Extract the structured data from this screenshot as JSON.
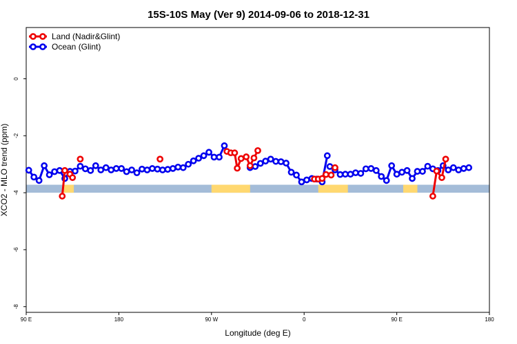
{
  "chart_data": {
    "type": "line",
    "title": "15S-10S May (Ver 9)   2014-09-06 to 2018-12-31",
    "xlabel": "Longitude (deg E)",
    "ylabel": "XCO2 - MLO trend (ppm)",
    "xlim": [
      90,
      450
    ],
    "ylim": [
      -8.2,
      1.8
    ],
    "x_ticks": [
      {
        "value": 90,
        "label": "90 E"
      },
      {
        "value": 162,
        "label": "180"
      },
      {
        "value": 234,
        "label": "90 W"
      },
      {
        "value": 306,
        "label": "0"
      },
      {
        "value": 378,
        "label": "90 E"
      },
      {
        "value": 450,
        "label": "180"
      }
    ],
    "y_ticks": [
      {
        "value": 0,
        "label": "0"
      },
      {
        "value": -2,
        "label": "-2"
      },
      {
        "value": -4,
        "label": "-4"
      },
      {
        "value": -6,
        "label": "-6"
      },
      {
        "value": -8,
        "label": "-8"
      }
    ],
    "legend": {
      "position": "top-left",
      "entries": [
        {
          "name": "Land (Nadir&Glint)",
          "color": "#ee0000"
        },
        {
          "name": "Ocean (Glint)",
          "color": "#0000ee"
        }
      ]
    },
    "land_mask_band": {
      "y_range": [
        -4.0,
        -3.72
      ],
      "ocean_color": "#a4bcd8",
      "land_color": "#ffd870",
      "land_segments": [
        [
          118,
          127
        ],
        [
          234,
          264
        ],
        [
          317,
          340
        ],
        [
          383,
          394
        ]
      ]
    },
    "series": [
      {
        "name": "Ocean (Glint)",
        "color": "#0000ee",
        "segments": [
          [
            [
              92,
              -3.21
            ],
            [
              96,
              -3.45
            ],
            [
              100,
              -3.57
            ],
            [
              104,
              -3.05
            ],
            [
              108,
              -3.37
            ],
            [
              112,
              -3.26
            ],
            [
              116,
              -3.22
            ],
            [
              120,
              -3.5
            ],
            [
              124,
              -3.25
            ],
            [
              128,
              -3.24
            ],
            [
              132,
              -3.07
            ],
            [
              136,
              -3.16
            ],
            [
              140,
              -3.22
            ],
            [
              144,
              -3.05
            ],
            [
              148,
              -3.2
            ],
            [
              152,
              -3.12
            ],
            [
              156,
              -3.2
            ],
            [
              160,
              -3.15
            ],
            [
              164,
              -3.15
            ],
            [
              168,
              -3.26
            ],
            [
              172,
              -3.2
            ],
            [
              176,
              -3.3
            ],
            [
              180,
              -3.17
            ],
            [
              184,
              -3.2
            ],
            [
              188,
              -3.15
            ],
            [
              192,
              -3.17
            ],
            [
              196,
              -3.2
            ],
            [
              200,
              -3.18
            ],
            [
              204,
              -3.15
            ],
            [
              208,
              -3.1
            ],
            [
              212,
              -3.12
            ],
            [
              216,
              -3.0
            ],
            [
              220,
              -2.88
            ],
            [
              224,
              -2.79
            ],
            [
              228,
              -2.7
            ],
            [
              232,
              -2.58
            ],
            [
              236,
              -2.75
            ],
            [
              240,
              -2.75
            ],
            [
              244,
              -2.35
            ]
          ],
          [
            [
              264,
              -3.12
            ],
            [
              268,
              -3.08
            ],
            [
              272,
              -2.97
            ],
            [
              276,
              -2.89
            ],
            [
              280,
              -2.82
            ],
            [
              284,
              -2.9
            ],
            [
              288,
              -2.91
            ],
            [
              292,
              -2.96
            ],
            [
              296,
              -3.28
            ],
            [
              300,
              -3.38
            ],
            [
              304,
              -3.62
            ],
            [
              308,
              -3.55
            ],
            [
              312,
              -3.5
            ],
            [
              316,
              -3.52
            ],
            [
              320,
              -3.62
            ],
            [
              324,
              -2.7
            ]
          ],
          [
            [
              326,
              -3.08
            ],
            [
              330,
              -3.2
            ],
            [
              334,
              -3.36
            ],
            [
              338,
              -3.35
            ],
            [
              342,
              -3.35
            ],
            [
              346,
              -3.3
            ],
            [
              350,
              -3.32
            ],
            [
              354,
              -3.16
            ],
            [
              358,
              -3.15
            ],
            [
              362,
              -3.22
            ],
            [
              366,
              -3.43
            ],
            [
              370,
              -3.57
            ],
            [
              374,
              -3.05
            ],
            [
              378,
              -3.35
            ],
            [
              382,
              -3.28
            ],
            [
              386,
              -3.22
            ],
            [
              390,
              -3.5
            ],
            [
              394,
              -3.25
            ],
            [
              398,
              -3.25
            ],
            [
              402,
              -3.07
            ],
            [
              406,
              -3.16
            ],
            [
              410,
              -3.22
            ],
            [
              414,
              -3.05
            ],
            [
              418,
              -3.2
            ],
            [
              422,
              -3.12
            ],
            [
              426,
              -3.2
            ],
            [
              430,
              -3.15
            ],
            [
              434,
              -3.12
            ]
          ]
        ]
      },
      {
        "name": "Land (Nadir&Glint)",
        "color": "#ee0000",
        "segments": [
          [
            [
              118,
              -4.12
            ],
            [
              120,
              -3.22
            ],
            [
              124,
              -3.35
            ],
            [
              126,
              -3.47
            ]
          ],
          [
            [
              132,
              -2.82
            ]
          ],
          [
            [
              194,
              -2.82
            ]
          ],
          [
            [
              246,
              -2.55
            ],
            [
              249,
              -2.6
            ],
            [
              252,
              -2.6
            ],
            [
              254,
              -3.14
            ],
            [
              257,
              -2.8
            ],
            [
              261,
              -2.74
            ],
            [
              264,
              -3.05
            ],
            [
              267,
              -2.78
            ],
            [
              270,
              -2.52
            ]
          ],
          [
            [
              314,
              -3.52
            ],
            [
              317,
              -3.52
            ],
            [
              320,
              -3.5
            ],
            [
              323,
              -3.36
            ],
            [
              327,
              -3.38
            ]
          ],
          [
            [
              330,
              -3.12
            ]
          ],
          [
            [
              406,
              -4.12
            ],
            [
              409,
              -3.24
            ],
            [
              413,
              -3.47
            ],
            [
              416,
              -2.82
            ]
          ]
        ]
      }
    ]
  }
}
